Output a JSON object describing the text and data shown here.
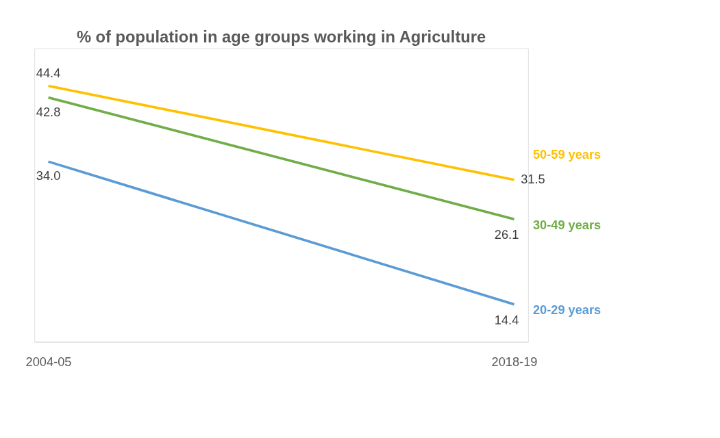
{
  "chart_data": {
    "type": "line",
    "title": "% of population in age groups working in Agriculture",
    "categories": [
      "2004-05",
      "2018-19"
    ],
    "series": [
      {
        "name": "50-59 years",
        "color": "#ffc000",
        "values": [
          44.4,
          31.5
        ],
        "value_labels": [
          "44.4",
          "31.5"
        ]
      },
      {
        "name": "30-49 years",
        "color": "#70ad47",
        "values": [
          42.8,
          26.1
        ],
        "value_labels": [
          "42.8",
          "26.1"
        ]
      },
      {
        "name": "20-29 years",
        "color": "#5b9bd5",
        "values": [
          34.0,
          14.4
        ],
        "value_labels": [
          "34.0",
          "14.4"
        ]
      }
    ],
    "legend": false,
    "grid": false,
    "marker": "none",
    "line_style": "solid"
  }
}
